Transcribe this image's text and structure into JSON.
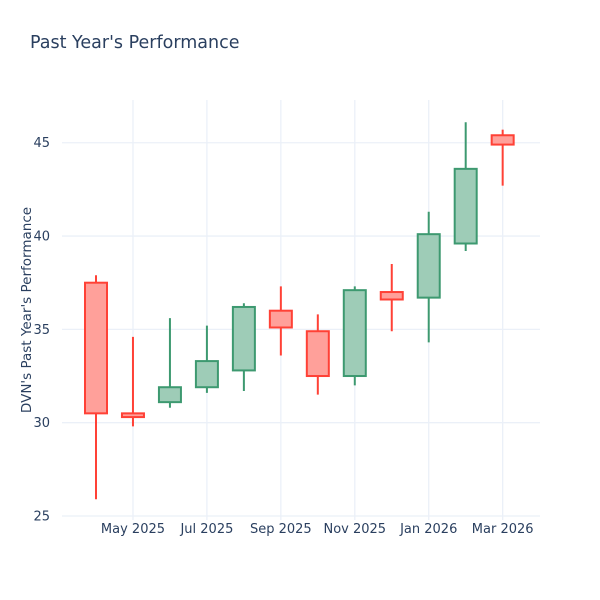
{
  "chart_data": {
    "type": "candlestick",
    "title": "Past Year's Performance",
    "xlabel": "",
    "ylabel": "DVN's Past Year's Performance",
    "ylim": [
      24.8,
      47.3
    ],
    "grid": true,
    "legend": "none",
    "yticks": [
      25,
      30,
      35,
      40,
      45
    ],
    "xticks": [
      {
        "label": "May 2025",
        "index": 1
      },
      {
        "label": "Jul 2025",
        "index": 3
      },
      {
        "label": "Sep 2025",
        "index": 5
      },
      {
        "label": "Nov 2025",
        "index": 7
      },
      {
        "label": "Jan 2026",
        "index": 9
      },
      {
        "label": "Mar 2026",
        "index": 11
      }
    ],
    "candles": [
      {
        "month": "Apr 2025",
        "open": 37.5,
        "high": 37.9,
        "low": 25.9,
        "close": 30.5
      },
      {
        "month": "May 2025",
        "open": 30.5,
        "high": 34.6,
        "low": 29.8,
        "close": 30.3
      },
      {
        "month": "Jun 2025",
        "open": 31.1,
        "high": 35.6,
        "low": 30.8,
        "close": 31.9
      },
      {
        "month": "Jul 2025",
        "open": 31.9,
        "high": 35.2,
        "low": 31.6,
        "close": 33.3
      },
      {
        "month": "Aug 2025",
        "open": 32.8,
        "high": 36.4,
        "low": 31.7,
        "close": 36.2
      },
      {
        "month": "Sep 2025",
        "open": 36.0,
        "high": 37.3,
        "low": 33.6,
        "close": 35.1
      },
      {
        "month": "Oct 2025",
        "open": 34.9,
        "high": 35.8,
        "low": 31.5,
        "close": 32.5
      },
      {
        "month": "Nov 2025",
        "open": 32.5,
        "high": 37.3,
        "low": 32.0,
        "close": 37.1
      },
      {
        "month": "Dec 2025",
        "open": 37.0,
        "high": 38.5,
        "low": 34.9,
        "close": 36.6
      },
      {
        "month": "Jan 2026",
        "open": 36.7,
        "high": 41.3,
        "low": 34.3,
        "close": 40.1
      },
      {
        "month": "Feb 2026",
        "open": 39.6,
        "high": 46.1,
        "low": 39.2,
        "close": 43.6
      },
      {
        "month": "Mar 2026",
        "open": 45.4,
        "high": 45.7,
        "low": 42.7,
        "close": 44.9
      }
    ],
    "colors": {
      "increasing_line": "#3D9970",
      "increasing_fill": "#9ECCB7",
      "decreasing_line": "#FF4136",
      "decreasing_fill": "#FFA09A",
      "grid": "#EBF0F8",
      "text": "#2A3F5F"
    }
  }
}
